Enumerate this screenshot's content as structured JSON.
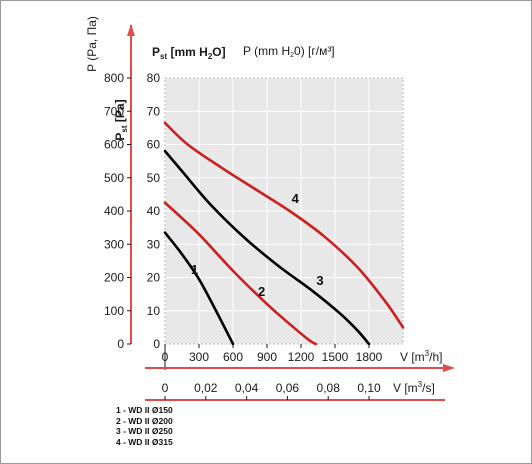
{
  "chart_data": {
    "type": "line",
    "title": "",
    "y_left_outer": {
      "label": "P (Pa, Па)",
      "label_bold": "P",
      "label_bold_sub": "st",
      "label_bold_unit": "[Pa]",
      "ticks": [
        "0",
        "100",
        "200",
        "300",
        "400",
        "500",
        "600",
        "700",
        "800"
      ],
      "range": [
        0,
        800
      ]
    },
    "y_left_inner": {
      "label_bold": "P",
      "label_bold_sub": "st",
      "label_bold_unit": "[mm H",
      "label_bold_unit_sub": "2",
      "label_bold_unit_end": "O]",
      "label_extra": "P (mm H",
      "label_extra_sub": "2",
      "label_extra_end": "0) [г/м³]",
      "ticks": [
        "0",
        "10",
        "20",
        "30",
        "40",
        "50",
        "60",
        "70",
        "80"
      ],
      "range": [
        0,
        80
      ]
    },
    "x_primary": {
      "label": "V [m³/h]",
      "label_prefix": "V  [m",
      "label_sup": "3",
      "label_suffix": "/h]",
      "ticks": [
        "0",
        "300",
        "600",
        "900",
        "1200",
        "1500",
        "1800"
      ],
      "range": [
        0,
        2100
      ]
    },
    "x_secondary": {
      "label": "V [m³/s]",
      "label_prefix": "V  [m",
      "label_sup": "3",
      "label_suffix": "/s]",
      "ticks": [
        "0",
        "0,02",
        "0,04",
        "0,06",
        "0,08",
        "0,10"
      ]
    },
    "grid": true,
    "series": [
      {
        "name": "1",
        "color": "#000000",
        "points": [
          [
            0,
            33.5
          ],
          [
            150,
            27
          ],
          [
            300,
            19.5
          ],
          [
            450,
            10
          ],
          [
            600,
            0
          ]
        ]
      },
      {
        "name": "2",
        "color": "#cc1f1f",
        "points": [
          [
            0,
            42.5
          ],
          [
            300,
            33
          ],
          [
            600,
            22
          ],
          [
            900,
            12
          ],
          [
            1100,
            6
          ],
          [
            1270,
            1.2
          ],
          [
            1330,
            0
          ]
        ]
      },
      {
        "name": "3",
        "color": "#000000",
        "points": [
          [
            0,
            58
          ],
          [
            150,
            52
          ],
          [
            400,
            42
          ],
          [
            700,
            32
          ],
          [
            1000,
            23.5
          ],
          [
            1300,
            16
          ],
          [
            1550,
            9
          ],
          [
            1700,
            4
          ],
          [
            1800,
            0
          ]
        ]
      },
      {
        "name": "4",
        "color": "#cc1f1f",
        "points": [
          [
            0,
            66.5
          ],
          [
            200,
            60
          ],
          [
            500,
            53
          ],
          [
            800,
            46.5
          ],
          [
            1100,
            40
          ],
          [
            1400,
            32.5
          ],
          [
            1700,
            23
          ],
          [
            1950,
            12.5
          ],
          [
            2100,
            5
          ]
        ]
      }
    ],
    "legend": [
      "1 - WD II Ø150",
      "2 - WD II Ø200",
      "3 - WD II Ø250",
      "4 - WD II Ø315"
    ]
  },
  "colors": {
    "plot_bg": "#e8e8e8",
    "grid": "#ffffff",
    "red": "#cc1f1f",
    "axis_arrow": "#e24b4b"
  }
}
